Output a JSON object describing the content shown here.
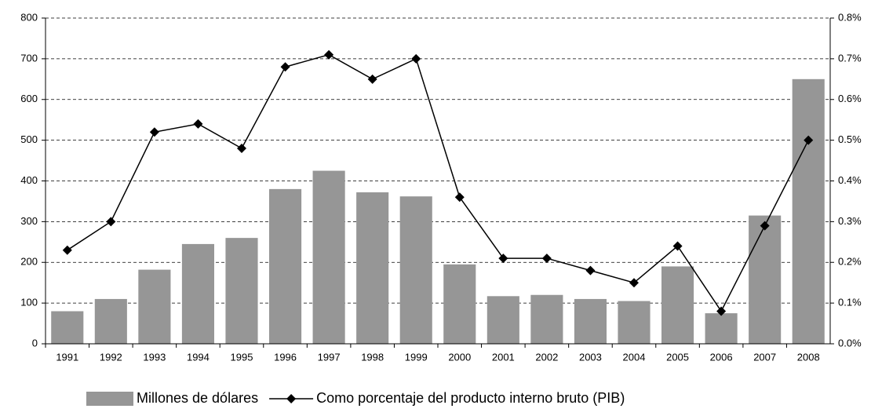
{
  "chart_data": {
    "type": "bar_line",
    "categories": [
      "1991",
      "1992",
      "1993",
      "1994",
      "1995",
      "1996",
      "1997",
      "1998",
      "1999",
      "2000",
      "2001",
      "2002",
      "2003",
      "2004",
      "2005",
      "2006",
      "2007",
      "2008"
    ],
    "series": [
      {
        "name": "Millones de dólares",
        "type": "bar",
        "color": "#969696",
        "values": [
          80,
          110,
          182,
          245,
          260,
          380,
          425,
          372,
          362,
          195,
          117,
          120,
          110,
          105,
          190,
          75,
          315,
          650
        ]
      },
      {
        "name": "Como porcentaje del producto interno bruto (PIB)",
        "type": "line",
        "axis": "y2",
        "color": "#000000",
        "values": [
          0.23,
          0.3,
          0.52,
          0.54,
          0.48,
          0.68,
          0.71,
          0.65,
          0.7,
          0.36,
          0.21,
          0.21,
          0.18,
          0.15,
          0.24,
          0.08,
          0.29,
          0.5
        ]
      }
    ],
    "ylim": [
      0,
      800
    ],
    "yticks": [
      0,
      100,
      200,
      300,
      400,
      500,
      600,
      700,
      800
    ],
    "y2lim": [
      0,
      0.8
    ],
    "y2ticks": [
      {
        "value": 0,
        "label": "0.0%"
      },
      {
        "value": 0.1,
        "label": "0.1%"
      },
      {
        "value": 0.2,
        "label": "0.2%"
      },
      {
        "value": 0.3,
        "label": "0.3%"
      },
      {
        "value": 0.4,
        "label": "0.4%"
      },
      {
        "value": 0.5,
        "label": "0.5%"
      },
      {
        "value": 0.6,
        "label": "0.6%"
      },
      {
        "value": 0.7,
        "label": "0.7%"
      },
      {
        "value": 0.8,
        "label": "0.8%"
      }
    ],
    "grid": true,
    "legend": "bottom"
  }
}
